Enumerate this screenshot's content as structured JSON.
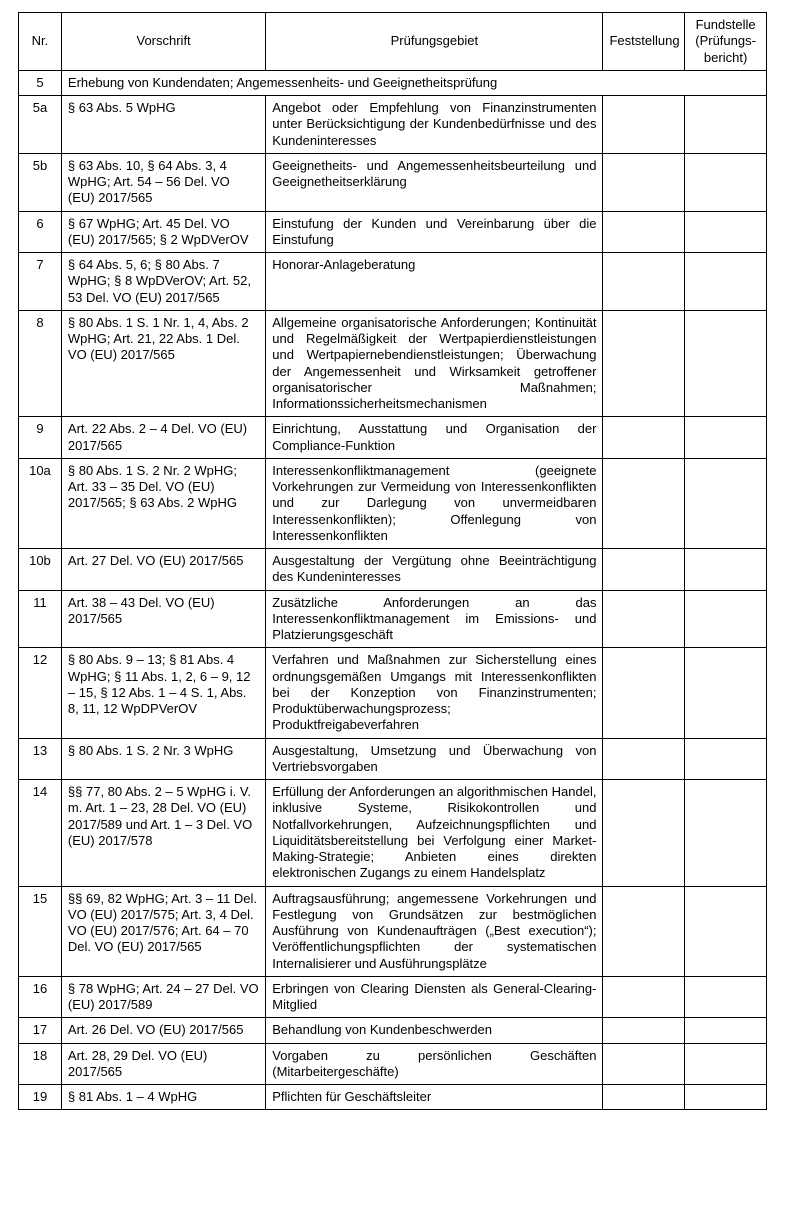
{
  "table": {
    "headers": {
      "nr": "Nr.",
      "vorschrift": "Vorschrift",
      "pruefungsgebiet": "Prüfungsgebiet",
      "feststellung": "Feststellung",
      "fundstelle": "Fundstelle (Prüfungs­bericht)"
    },
    "section": {
      "nr": "5",
      "title": "Erhebung von Kundendaten; Angemessenheits- und Geeignetheitsprüfung"
    },
    "rows": [
      {
        "nr": "5a",
        "vorschrift": "§ 63 Abs. 5 WpHG",
        "pruefungsgebiet": "Angebot oder Empfehlung von Finanzinstrumenten unter Berücksichtigung der Kundenbedürfnisse und des Kundeninteresses",
        "feststellung": "",
        "fundstelle": ""
      },
      {
        "nr": "5b",
        "vorschrift": "§ 63 Abs. 10, § 64 Abs. 3, 4 WpHG; Art. 54 – 56 Del. VO (EU) 2017/565",
        "pruefungsgebiet": "Geeignetheits- und Angemessenheitsbeurteilung und Geeignetheitserklärung",
        "feststellung": "",
        "fundstelle": ""
      },
      {
        "nr": "6",
        "vorschrift": "§ 67 WpHG; Art. 45 Del. VO (EU) 2017/565; § 2 WpDVerOV",
        "pruefungsgebiet": "Einstufung der Kunden und Vereinbarung über die Einstufung",
        "feststellung": "",
        "fundstelle": ""
      },
      {
        "nr": "7",
        "vorschrift": "§ 64 Abs. 5, 6; § 80 Abs. 7 WpHG; § 8 WpDVerOV; Art. 52, 53 Del. VO (EU) 2017/565",
        "pruefungsgebiet": "Honorar-Anlageberatung",
        "feststellung": "",
        "fundstelle": ""
      },
      {
        "nr": "8",
        "vorschrift": "§ 80 Abs. 1 S. 1 Nr. 1, 4, Abs. 2 WpHG; Art. 21, 22 Abs. 1 Del. VO (EU) 2017/565",
        "pruefungsgebiet": "Allgemeine organisatorische Anforderungen; Kontinuität und Regelmäßigkeit der Wertpapierdienstleistungen und Wertpapiernebendienstleistungen; Überwachung der Angemessenheit und Wirksamkeit getroffener organisatorischer Maßnahmen; Informationssicherheitsmechanismen",
        "feststellung": "",
        "fundstelle": ""
      },
      {
        "nr": "9",
        "vorschrift": "Art. 22 Abs. 2 – 4 Del. VO (EU) 2017/565",
        "pruefungsgebiet": "Einrichtung, Ausstattung und Organisation der Compliance-Funktion",
        "feststellung": "",
        "fundstelle": ""
      },
      {
        "nr": "10a",
        "vorschrift": "§ 80 Abs. 1 S. 2 Nr. 2 WpHG; Art. 33 – 35 Del. VO (EU) 2017/565; § 63 Abs. 2 WpHG",
        "pruefungsgebiet": "Interessenkonfliktmanagement (geeignete Vorkehrungen zur Vermeidung von Interessenkonflikten und zur Darlegung von unvermeidbaren Interessenkonflikten); Offenlegung von Interessenkonflikten",
        "feststellung": "",
        "fundstelle": ""
      },
      {
        "nr": "10b",
        "vorschrift": "Art. 27 Del. VO (EU) 2017/565",
        "pruefungsgebiet": "Ausgestaltung der Vergütung ohne Beeinträchtigung des Kundeninteresses",
        "feststellung": "",
        "fundstelle": ""
      },
      {
        "nr": "11",
        "vorschrift": "Art. 38 – 43 Del. VO (EU) 2017/565",
        "pruefungsgebiet": "Zusätzliche Anforderungen an das Interessenkonfliktmanagement im Emissions- und Platzierungsgeschäft",
        "feststellung": "",
        "fundstelle": ""
      },
      {
        "nr": "12",
        "vorschrift": "§ 80 Abs. 9 – 13; § 81 Abs. 4 WpHG; § 11 Abs. 1, 2, 6 – 9, 12 – 15, § 12 Abs. 1 – 4 S. 1, Abs. 8, 11, 12 WpDPVerOV",
        "pruefungsgebiet": "Verfahren und Maßnahmen zur Sicherstellung eines ordnungsgemäßen Umgangs mit Interessenkonflikten bei der Konzeption von Finanzinstrumenten; Produktüberwachungsprozess; Produktfreigabeverfahren",
        "feststellung": "",
        "fundstelle": ""
      },
      {
        "nr": "13",
        "vorschrift": "§ 80 Abs. 1 S. 2 Nr. 3 WpHG",
        "pruefungsgebiet": "Ausgestaltung, Umsetzung und Überwachung von Vertriebsvorgaben",
        "feststellung": "",
        "fundstelle": ""
      },
      {
        "nr": "14",
        "vorschrift": "§§ 77, 80 Abs. 2 – 5 WpHG i. V. m. Art. 1 – 23, 28 Del. VO (EU) 2017/589 und Art. 1 – 3 Del. VO (EU) 2017/578",
        "pruefungsgebiet": "Erfüllung der Anforderungen an algorithmischen Handel, inklusive Systeme, Risikokontrollen und Notfallvorkehrungen, Aufzeichnungspflichten und Liquiditätsbereitstellung bei Verfolgung einer Market-Making-Strategie; Anbieten eines direkten elektronischen Zugangs zu einem Handelsplatz",
        "feststellung": "",
        "fundstelle": ""
      },
      {
        "nr": "15",
        "vorschrift": "§§ 69, 82 WpHG; Art. 3 – 11 Del. VO (EU) 2017/575; Art. 3, 4 Del. VO (EU) 2017/576; Art. 64 – 70 Del. VO (EU) 2017/565",
        "pruefungsgebiet": "Auftragsausführung; angemessene Vorkehrungen und Festlegung von Grundsätzen zur bestmöglichen Ausführung von Kundenaufträgen („Best execution“); Veröffentlichungspflichten der systematischen Internalisierer und Ausführungsplätze",
        "feststellung": "",
        "fundstelle": ""
      },
      {
        "nr": "16",
        "vorschrift": "§ 78 WpHG; Art. 24 – 27 Del. VO (EU) 2017/589",
        "pruefungsgebiet": "Erbringen von Clearing Diensten als General-Clearing-Mitglied",
        "feststellung": "",
        "fundstelle": ""
      },
      {
        "nr": "17",
        "vorschrift": "Art. 26 Del. VO (EU) 2017/565",
        "pruefungsgebiet": "Behandlung von Kundenbeschwerden",
        "feststellung": "",
        "fundstelle": ""
      },
      {
        "nr": "18",
        "vorschrift": "Art. 28, 29 Del. VO (EU) 2017/565",
        "pruefungsgebiet": "Vorgaben zu persönlichen Geschäften (Mitarbeitergeschäfte)",
        "feststellung": "",
        "fundstelle": ""
      },
      {
        "nr": "19",
        "vorschrift": "§ 81 Abs. 1 – 4 WpHG",
        "pruefungsgebiet": "Pflichten für Geschäftsleiter",
        "feststellung": "",
        "fundstelle": ""
      }
    ]
  }
}
